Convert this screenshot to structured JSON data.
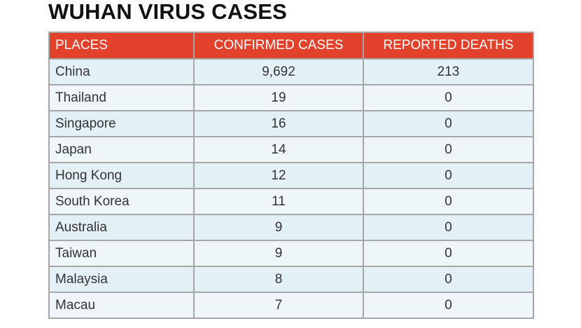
{
  "title": "WUHAN VIRUS CASES",
  "colors": {
    "header_bg": "#e2412b",
    "header_text": "#ffffff",
    "row_odd": "#e3f0f6",
    "row_even": "#eff6f9",
    "border": "#a6a6a6"
  },
  "table": {
    "headers": [
      "PLACES",
      "CONFIRMED CASES",
      "REPORTED DEATHS"
    ],
    "rows": [
      {
        "place": "China",
        "confirmed": "9,692",
        "deaths": "213"
      },
      {
        "place": "Thailand",
        "confirmed": "19",
        "deaths": "0"
      },
      {
        "place": "Singapore",
        "confirmed": "16",
        "deaths": "0"
      },
      {
        "place": "Japan",
        "confirmed": "14",
        "deaths": "0"
      },
      {
        "place": "Hong Kong",
        "confirmed": "12",
        "deaths": "0"
      },
      {
        "place": "South Korea",
        "confirmed": "11",
        "deaths": "0"
      },
      {
        "place": "Australia",
        "confirmed": "9",
        "deaths": "0"
      },
      {
        "place": "Taiwan",
        "confirmed": "9",
        "deaths": "0"
      },
      {
        "place": "Malaysia",
        "confirmed": "8",
        "deaths": "0"
      },
      {
        "place": "Macau",
        "confirmed": "7",
        "deaths": "0"
      }
    ]
  }
}
